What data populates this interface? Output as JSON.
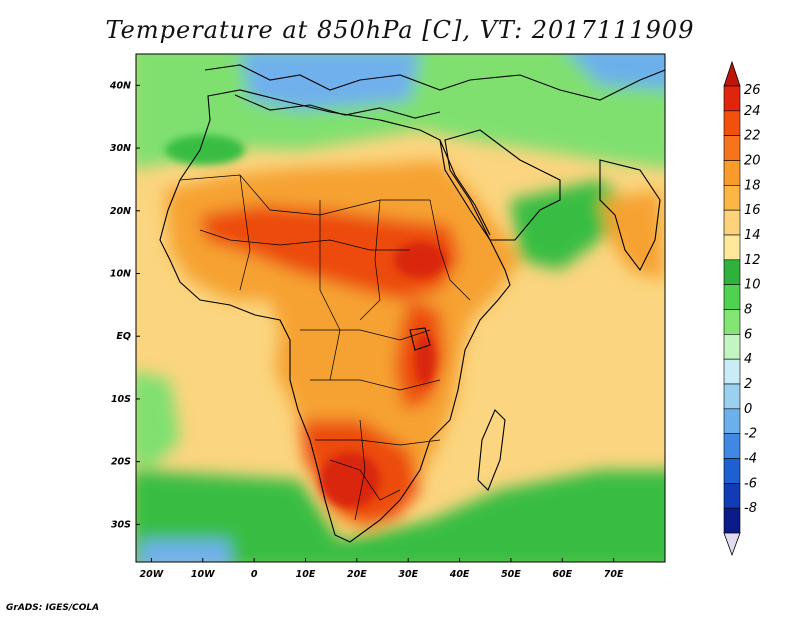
{
  "title": "Temperature at 850hPa [C], VT: 2017111909",
  "credit": "GrADS: IGES/COLA",
  "map": {
    "lon_range": [
      -23,
      80
    ],
    "lat_range": [
      -36,
      45
    ],
    "x_ticks": [
      "20W",
      "10W",
      "0",
      "10E",
      "20E",
      "30E",
      "40E",
      "50E",
      "60E",
      "70E"
    ],
    "x_tick_lons": [
      -20,
      -10,
      0,
      10,
      20,
      30,
      40,
      50,
      60,
      70
    ],
    "y_ticks": [
      "40N",
      "30N",
      "20N",
      "10N",
      "EQ",
      "10S",
      "20S",
      "30S"
    ],
    "y_tick_lats": [
      40,
      30,
      20,
      10,
      0,
      -10,
      -20,
      -30
    ]
  },
  "colorbar": {
    "labels": [
      "26",
      "24",
      "22",
      "20",
      "18",
      "16",
      "14",
      "12",
      "10",
      "8",
      "6",
      "4",
      "2",
      "0",
      "-2",
      "-4",
      "-6",
      "-8"
    ],
    "colors_top_to_bottom": [
      "#e0240d",
      "#f2500d",
      "#f7741d",
      "#fa9a2a",
      "#fbb646",
      "#fdd27a",
      "#fde89c",
      "#2eb23d",
      "#4ed24f",
      "#83e673",
      "#c3f5c3",
      "#c9ecf7",
      "#9ad1f0",
      "#6cb0eb",
      "#3f88e3",
      "#1e5fd2",
      "#123cb6",
      "#0c1b8a"
    ],
    "top_arrow_color": "#c0160a",
    "bottom_arrow_color": "#e2dcf2"
  },
  "colors": {
    "warm_core": "#ec4b10",
    "hot_spot": "#d9250b",
    "warm": "#f6a233",
    "pale_warm": "#fbd57f",
    "land_green": "#37bd42",
    "cool_green": "#8ae57a",
    "cold_blue": "#6fb0ec",
    "coast": "#000000"
  }
}
